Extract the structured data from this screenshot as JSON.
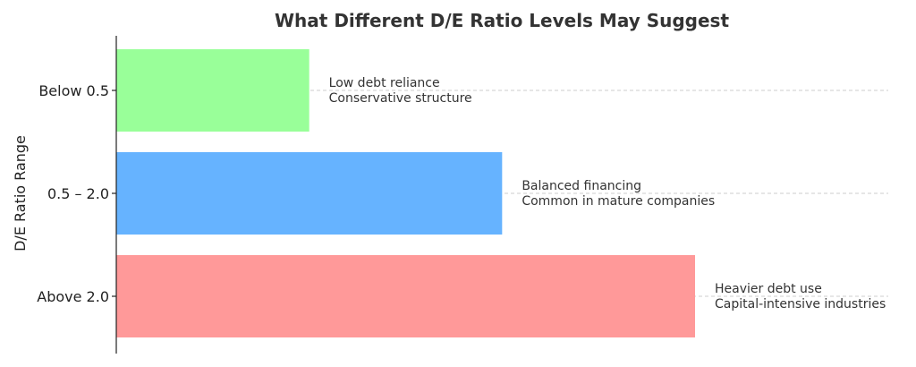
{
  "chart_data": {
    "type": "bar",
    "orientation": "horizontal",
    "title": "What Different D/E Ratio Levels May Suggest",
    "xlabel": "",
    "ylabel": "D/E Ratio Range",
    "categories": [
      "Below 0.5",
      "0.5 – 2.0",
      "Above 2.0"
    ],
    "values": [
      1,
      2,
      3
    ],
    "xlim": [
      0,
      3
    ],
    "grid": "horizontal dashed",
    "colors": [
      "#99ff99",
      "#66b3ff",
      "#ff9999"
    ],
    "annotations": [
      [
        "Low debt reliance",
        "Conservative structure"
      ],
      [
        "Balanced financing",
        "Common in mature companies"
      ],
      [
        "Heavier debt use",
        "Capital-intensive industries"
      ]
    ]
  }
}
